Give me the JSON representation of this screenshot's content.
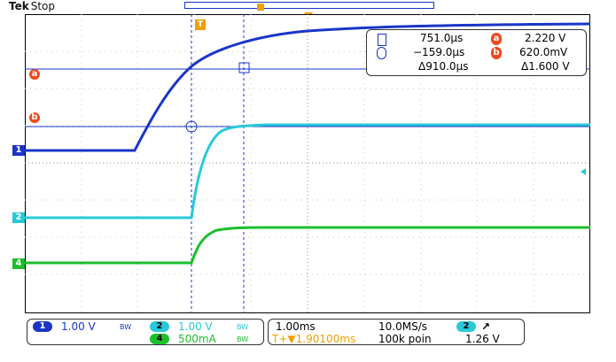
{
  "header": {
    "brand": "Tek",
    "mode": "Stop"
  },
  "markers": {
    "ch1": "1",
    "ch2": "2",
    "ch4": "4",
    "ref_a": "a",
    "ref_b": "b",
    "trigger_t": "T"
  },
  "cursor_readout": {
    "row1_time": "751.0µs",
    "row1_level": "2.220 V",
    "row2_time": "−159.0µs",
    "row2_level": "620.0mV",
    "delta_time": "Δ910.0µs",
    "delta_level": "Δ1.600 V",
    "icons": [
      "square-cursor-icon",
      "circle-cursor-icon"
    ]
  },
  "channels": {
    "ch1": {
      "label": "1",
      "scale": "1.00 V",
      "bw": "BW",
      "color": "#1a35c8"
    },
    "ch2": {
      "label": "2",
      "scale": "1.00 V",
      "bw": "BW",
      "color": "#27c9d9"
    },
    "ch4": {
      "label": "4",
      "scale": "500mA",
      "bw": "BW",
      "color": "#1bbf2a"
    }
  },
  "timebase": {
    "scale": "1.00ms",
    "sample_rate": "10.0MS/s",
    "trigger_position": "1.90100ms",
    "record_length": "100k poin"
  },
  "trigger": {
    "source": "2",
    "slope": "rising-edge-icon",
    "level": "1.26 V"
  },
  "colors": {
    "ch1": "#1a35c8",
    "ch2": "#27c9d9",
    "ch4": "#1bbf2a",
    "cursor_ref": "#ee4a1e",
    "trigger": "#f2a000"
  }
}
